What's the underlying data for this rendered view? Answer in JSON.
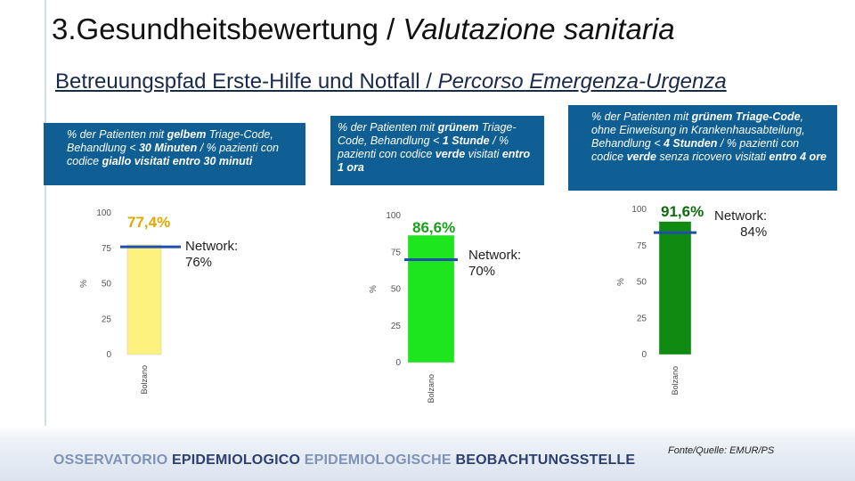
{
  "header": {
    "title_de": "3.Gesundheitsbewertung / ",
    "title_it": "Valutazione sanitaria",
    "subtitle_de": "Betreuungspfad Erste-Hilfe und Notfall / ",
    "subtitle_it": "Percorso Emergenza-Urgenza"
  },
  "boxes": [
    {
      "pre": "% der Patienten mit ",
      "b1": "gelbem",
      "mid1": " Triage-Code, Behandlung < ",
      "b2": "30 Minuten",
      "mid2": "  / % pazienti con codice ",
      "b3": "giallo visitati entro 30 minuti",
      "post": ""
    },
    {
      "pre": "% der Patienten mit ",
      "b1": "grünem",
      "mid1": " Triage-Code, Behandlung  < ",
      "b2": "1 Stunde",
      "mid2": " / % pazienti con codice ",
      "b3": "verde",
      "post": " visitati ",
      "b4": "entro 1 ora"
    },
    {
      "pre": "% der Patienten mit ",
      "b1": "grünem Triage-Code",
      "mid1": ", ohne Einweisung in Krankenhausabteilung, Behandlung < ",
      "b2": "4 Stunden",
      "mid2": " / % pazienti con codice ",
      "b3": "verde",
      "post": " senza ricovero visitati ",
      "b4": "entro 4 ore"
    }
  ],
  "chart_data": [
    {
      "type": "bar",
      "categories": [
        "Bolzano"
      ],
      "values": [
        77.4
      ],
      "ylabel": "%",
      "ylim": [
        0,
        100
      ],
      "yticks": [
        "0",
        "25",
        "50",
        "75",
        "100"
      ],
      "value_label": "77,4%",
      "network_label_1": "Network:",
      "network_label_2": "76%",
      "network_value": 76,
      "bar_color": "#fdf27e",
      "value_color": "#e0a800"
    },
    {
      "type": "bar",
      "categories": [
        "Bolzano"
      ],
      "values": [
        86.6
      ],
      "ylabel": "%",
      "ylim": [
        0,
        100
      ],
      "yticks": [
        "0",
        "25",
        "50",
        "75",
        "100"
      ],
      "value_label": "86,6%",
      "network_label_1": "Network:",
      "network_label_2": "70%",
      "network_value": 70,
      "bar_color": "#1ee61e",
      "value_color": "#1aa01a"
    },
    {
      "type": "bar",
      "categories": [
        "Bolzano"
      ],
      "values": [
        91.6
      ],
      "ylabel": "%",
      "ylim": [
        0,
        100
      ],
      "yticks": [
        "0",
        "25",
        "50",
        "75",
        "100"
      ],
      "value_label": "91,6%",
      "network_label_1": "Network:",
      "network_label_2": "84%",
      "network_value": 84,
      "bar_color": "#118a11",
      "value_color": "#0d6b0d"
    }
  ],
  "footer": {
    "part1": "OSSERVATORIO ",
    "part2": "EPIDEMIOLOGICO ",
    "part3": "EPIDEMIOLOGISCHE ",
    "part4": "BEOBACHTUNGSSTELLE",
    "source": "Fonte/Quelle: EMUR/PS"
  },
  "colors": {
    "box_bg": "#0f5f94",
    "network_line": "#1f4fa8"
  }
}
